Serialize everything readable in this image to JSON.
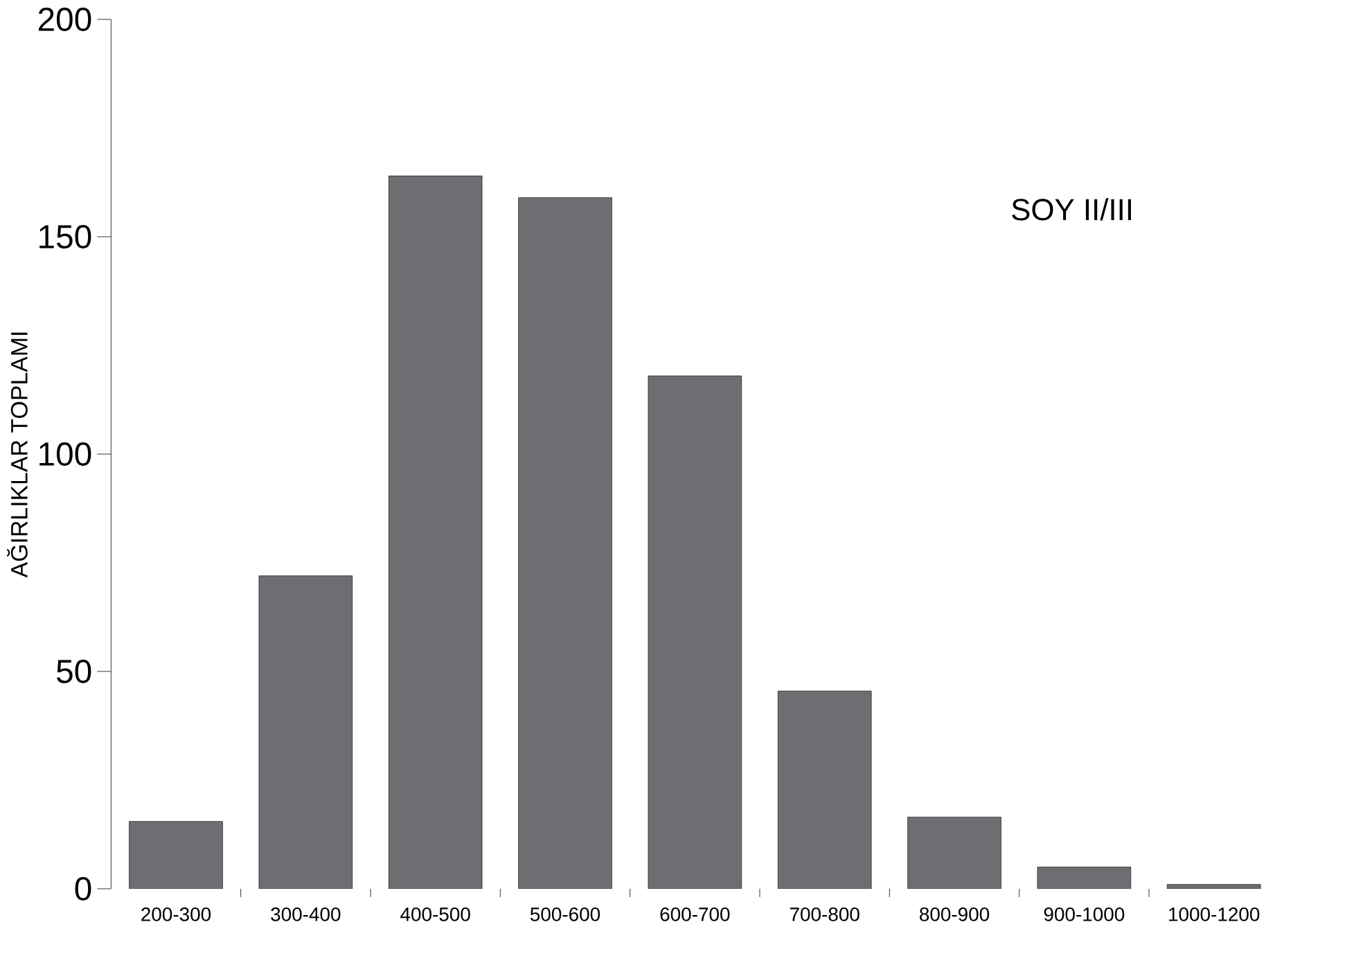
{
  "chart_data": {
    "type": "bar",
    "ylabel": "AĞIRLIKLAR TOPLAMI",
    "categories": [
      "200-300",
      "300-400",
      "400-500",
      "500-600",
      "600-700",
      "700-800",
      "800-900",
      "900-1000",
      "1000-1200"
    ],
    "values": [
      15.5,
      72,
      164,
      159,
      118,
      45.5,
      16.5,
      5,
      1
    ],
    "color": "#6d6e71",
    "ylim": [
      0,
      200
    ],
    "yticks": [
      0,
      50,
      100,
      150,
      200
    ],
    "annotations": [
      "SOY II/III"
    ]
  }
}
